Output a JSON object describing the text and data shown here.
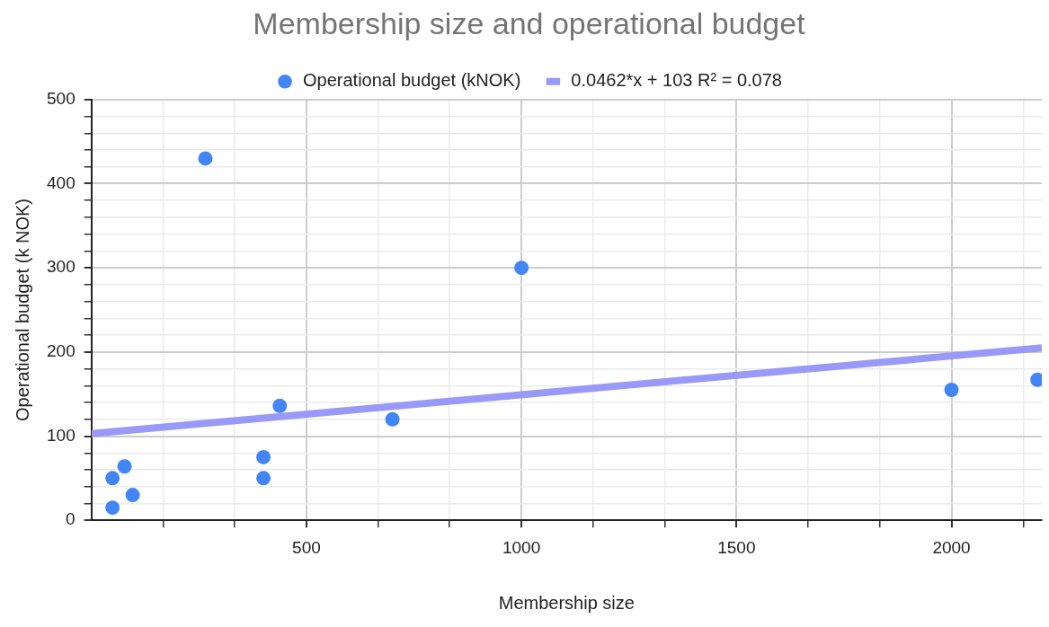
{
  "chart_data": {
    "type": "scatter",
    "title": "Membership size and operational budget",
    "xlabel": "Membership size",
    "ylabel": "Operational budget (k NOK)",
    "series": [
      {
        "name": "Operational budget (kNOK)",
        "marker": "circle",
        "color": "#4285f4",
        "x": [
          49,
          49,
          77,
          96,
          265,
          400,
          400,
          438,
          700,
          1000,
          2000,
          2200
        ],
        "values": [
          15,
          50,
          64,
          30,
          430,
          75,
          50,
          136,
          120,
          300,
          155,
          167
        ]
      },
      {
        "name": "0.0462*x + 103 R² = 0.078",
        "type": "line",
        "color": "#9999f7",
        "x": [
          0,
          2210
        ],
        "values": [
          103,
          205
        ]
      }
    ],
    "xlim": [
      0,
      2210
    ],
    "xticks": [
      {
        "value": 167,
        "label": null
      },
      {
        "value": 333,
        "label": null
      },
      500,
      {
        "value": 667,
        "label": null
      },
      {
        "value": 833,
        "label": null
      },
      1000,
      {
        "value": 1167,
        "label": null
      },
      {
        "value": 1333,
        "label": null
      },
      1500,
      {
        "value": 1667,
        "label": null
      },
      {
        "value": 1833,
        "label": null
      },
      2000,
      {
        "value": 2167,
        "label": null
      }
    ],
    "ylim": [
      0,
      500
    ],
    "yticks": [
      0,
      {
        "value": 20,
        "label": null
      },
      {
        "value": 40,
        "label": null
      },
      {
        "value": 60,
        "label": null
      },
      {
        "value": 80,
        "label": null
      },
      100,
      {
        "value": 120,
        "label": null
      },
      {
        "value": 140,
        "label": null
      },
      {
        "value": 160,
        "label": null
      },
      {
        "value": 180,
        "label": null
      },
      200,
      {
        "value": 220,
        "label": null
      },
      {
        "value": 240,
        "label": null
      },
      {
        "value": 260,
        "label": null
      },
      {
        "value": 280,
        "label": null
      },
      300,
      {
        "value": 320,
        "label": null
      },
      {
        "value": 340,
        "label": null
      },
      {
        "value": 360,
        "label": null
      },
      {
        "value": 380,
        "label": null
      },
      400,
      {
        "value": 420,
        "label": null
      },
      {
        "value": 440,
        "label": null
      },
      {
        "value": 460,
        "label": null
      },
      {
        "value": 480,
        "label": null
      },
      500
    ],
    "grid": true,
    "legend": "top"
  }
}
